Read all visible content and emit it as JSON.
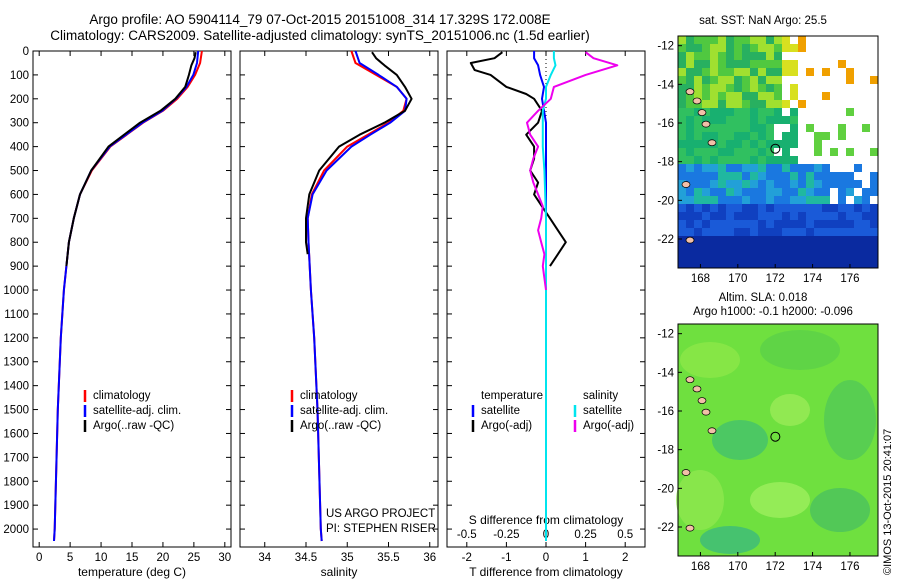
{
  "title": {
    "line1": "Argo profile: AO 5904114_79 07-Oct-2015 20151008_314 17.329S 172.008E",
    "line2": "Climatology: CARS2009. Satellite-adjusted climatology: synTS_20151006.nc (1.5d earlier)"
  },
  "colors": {
    "climatology": "#ff0000",
    "satellite": "#0000ff",
    "argo": "#000000",
    "satellite_salinity": "#00e5ee",
    "argo_salinity": "#ee00ee"
  },
  "chart_data": [
    {
      "type": "line",
      "panel": "temperature",
      "xlabel": "temperature (deg C)",
      "ylabel": "",
      "xlim": [
        -1,
        31
      ],
      "ylim": [
        2075,
        0
      ],
      "xticks": [
        0,
        5,
        10,
        15,
        20,
        25,
        30
      ],
      "yticks": [
        0,
        100,
        200,
        300,
        400,
        500,
        600,
        700,
        800,
        900,
        1000,
        1100,
        1200,
        1300,
        1400,
        1500,
        1600,
        1700,
        1800,
        1900,
        2000
      ],
      "legend": {
        "placement": "bottom-right",
        "entries": [
          "climatology",
          "satellite-adj. clim.",
          "Argo(..raw -QC)"
        ]
      },
      "series": [
        {
          "name": "climatology",
          "color": "#ff0000",
          "depth": [
            0,
            50,
            100,
            150,
            200,
            250,
            300,
            400,
            500,
            600,
            700,
            800,
            1000,
            1200,
            1500,
            2000,
            2050
          ],
          "values": [
            26.3,
            26.0,
            25.2,
            24.0,
            22.3,
            20.0,
            16.8,
            11.5,
            8.5,
            6.6,
            5.6,
            4.8,
            4.0,
            3.5,
            3.0,
            2.5,
            2.4
          ]
        },
        {
          "name": "satellite-adj. clim.",
          "color": "#0000ff",
          "depth": [
            0,
            50,
            100,
            150,
            200,
            250,
            300,
            400,
            500,
            600,
            700,
            800,
            1000,
            1200,
            1500,
            2000,
            2050
          ],
          "values": [
            25.7,
            25.5,
            24.9,
            23.8,
            22.1,
            19.9,
            16.7,
            11.4,
            8.4,
            6.6,
            5.6,
            4.8,
            4.0,
            3.5,
            3.0,
            2.5,
            2.4
          ]
        },
        {
          "name": "Argo(..raw -QC)",
          "color": "#000000",
          "depth": [
            5,
            30,
            60,
            100,
            150,
            200,
            250,
            300,
            400,
            500,
            600,
            700,
            800,
            900
          ],
          "values": [
            25.3,
            25.1,
            24.6,
            24.2,
            23.6,
            22.0,
            19.6,
            16.3,
            11.2,
            8.4,
            6.6,
            5.6,
            4.8,
            4.4
          ]
        }
      ]
    },
    {
      "type": "line",
      "panel": "salinity",
      "xlabel": "salinity",
      "ylabel": "",
      "xlim": [
        33.7,
        36.1
      ],
      "ylim": [
        2075,
        0
      ],
      "xticks": [
        34,
        34.5,
        35,
        35.5,
        36
      ],
      "xtick_labels": [
        "34",
        "34.5",
        "35",
        "35.5",
        "36"
      ],
      "legend": {
        "placement": "bottom-right",
        "entries": [
          "climatology",
          "satellite-adj. clim.",
          "Argo(..raw -QC)"
        ]
      },
      "annotations": [
        "US ARGO PROJECT",
        "PI: STEPHEN RISER"
      ],
      "series": [
        {
          "name": "climatology",
          "color": "#ff0000",
          "depth": [
            0,
            50,
            100,
            150,
            200,
            250,
            300,
            350,
            400,
            500,
            600,
            700,
            800,
            1000,
            1200,
            1500,
            2000,
            2050
          ],
          "values": [
            35.05,
            35.1,
            35.35,
            35.6,
            35.72,
            35.68,
            35.5,
            35.25,
            35.0,
            34.72,
            34.57,
            34.52,
            34.53,
            34.56,
            34.6,
            34.64,
            34.68,
            34.69
          ]
        },
        {
          "name": "satellite-adj. clim.",
          "color": "#0000ff",
          "depth": [
            0,
            50,
            100,
            150,
            200,
            250,
            300,
            350,
            400,
            500,
            600,
            700,
            800,
            1000,
            1200,
            1500,
            2000,
            2050
          ],
          "values": [
            35.1,
            35.15,
            35.38,
            35.6,
            35.72,
            35.7,
            35.52,
            35.28,
            35.05,
            34.75,
            34.58,
            34.52,
            34.53,
            34.56,
            34.6,
            34.64,
            34.68,
            34.69
          ]
        },
        {
          "name": "Argo(..raw -QC)",
          "color": "#000000",
          "depth": [
            5,
            30,
            60,
            100,
            150,
            200,
            250,
            300,
            350,
            400,
            500,
            600,
            700,
            800,
            850
          ],
          "values": [
            35.3,
            35.35,
            35.45,
            35.6,
            35.7,
            35.78,
            35.7,
            35.45,
            35.15,
            34.9,
            34.66,
            34.54,
            34.5,
            34.5,
            34.52
          ]
        }
      ]
    },
    {
      "type": "line",
      "panel": "difference",
      "xlabel": "T difference from climatology",
      "xlabel2": "S difference from climatology",
      "xlim": [
        -2.5,
        2.5
      ],
      "xticks": [
        -2,
        -1,
        0,
        1,
        2
      ],
      "xticks2": [
        "-0.5",
        "-0.25",
        "0",
        "0.25",
        "0.5"
      ],
      "ylim": [
        2075,
        0
      ],
      "legend": {
        "placement": "bottom",
        "groups": [
          {
            "heading": "temperature",
            "entries": [
              "satellite",
              "Argo(-adj)"
            ]
          },
          {
            "heading": "salinity",
            "entries": [
              "satellite",
              "Argo(-adj)"
            ]
          }
        ]
      },
      "series": [
        {
          "name": "satellite",
          "group": "temperature",
          "color": "#0000ff",
          "depth": [
            0,
            30,
            60,
            100,
            150,
            200,
            300,
            400,
            600,
            800,
            1000,
            1500,
            2050
          ],
          "values": [
            -0.3,
            -0.3,
            -0.2,
            -0.15,
            -0.05,
            -0.1,
            0.0,
            0.0,
            0.0,
            0.0,
            0.0,
            0.0,
            0.0
          ]
        },
        {
          "name": "Argo(-adj)",
          "group": "temperature",
          "color": "#000000",
          "depth": [
            5,
            30,
            50,
            80,
            100,
            150,
            180,
            200,
            250,
            300,
            350,
            400,
            450,
            500,
            550,
            600,
            650,
            700,
            750,
            800,
            850,
            900
          ],
          "values": [
            -1.1,
            -1.3,
            -1.9,
            -1.8,
            -1.4,
            -1.0,
            -0.5,
            -0.3,
            -0.1,
            -0.2,
            -0.5,
            -0.3,
            -0.3,
            -0.4,
            -0.2,
            -0.3,
            -0.1,
            0.1,
            0.3,
            0.5,
            0.3,
            0.1
          ]
        },
        {
          "name": "satellite",
          "group": "salinity",
          "color": "#00e5ee",
          "depth": [
            0,
            30,
            60,
            100,
            150,
            200,
            250,
            300,
            400,
            500,
            700,
            1000,
            1500,
            2050
          ],
          "values": [
            0.05,
            0.05,
            0.06,
            0.03,
            0.0,
            0.0,
            -0.02,
            -0.02,
            -0.02,
            -0.01,
            0.0,
            0.0,
            0.0,
            0.0
          ]
        },
        {
          "name": "Argo(-adj)",
          "group": "salinity",
          "color": "#ee00ee",
          "depth": [
            5,
            30,
            60,
            100,
            150,
            200,
            250,
            300,
            350,
            400,
            450,
            500,
            550,
            600,
            650,
            700,
            750,
            800,
            850,
            900,
            950,
            1000
          ],
          "values": [
            0.25,
            0.3,
            0.45,
            0.25,
            0.05,
            0.03,
            -0.05,
            -0.12,
            -0.1,
            -0.05,
            -0.08,
            -0.1,
            -0.08,
            -0.05,
            -0.02,
            -0.03,
            -0.05,
            -0.03,
            -0.01,
            -0.02,
            -0.01,
            0.0
          ]
        }
      ]
    },
    {
      "type": "heatmap",
      "panel": "sst-map",
      "title": "sat. SST: NaN Argo: 25.5",
      "xlim": [
        166.8,
        177.5
      ],
      "ylim": [
        -23.5,
        -11.5
      ],
      "xticks": [
        168,
        170,
        172,
        174,
        176
      ],
      "yticks": [
        -12,
        -14,
        -16,
        -18,
        -20,
        -22
      ],
      "argo_position": {
        "lon": 172.008,
        "lat": -17.329
      }
    },
    {
      "type": "heatmap",
      "panel": "sla-map",
      "title": "Altim. SLA: 0.018",
      "subtitle": "Argo h1000: -0.1 h2000: -0.096",
      "xlim": [
        166.8,
        177.5
      ],
      "ylim": [
        -23.5,
        -11.5
      ],
      "xticks": [
        168,
        170,
        172,
        174,
        176
      ],
      "yticks": [
        -12,
        -14,
        -16,
        -18,
        -20,
        -22
      ],
      "argo_position": {
        "lon": 172.008,
        "lat": -17.329
      }
    }
  ],
  "stamp": "©IMOS 13-Oct-2015 20:41:07"
}
